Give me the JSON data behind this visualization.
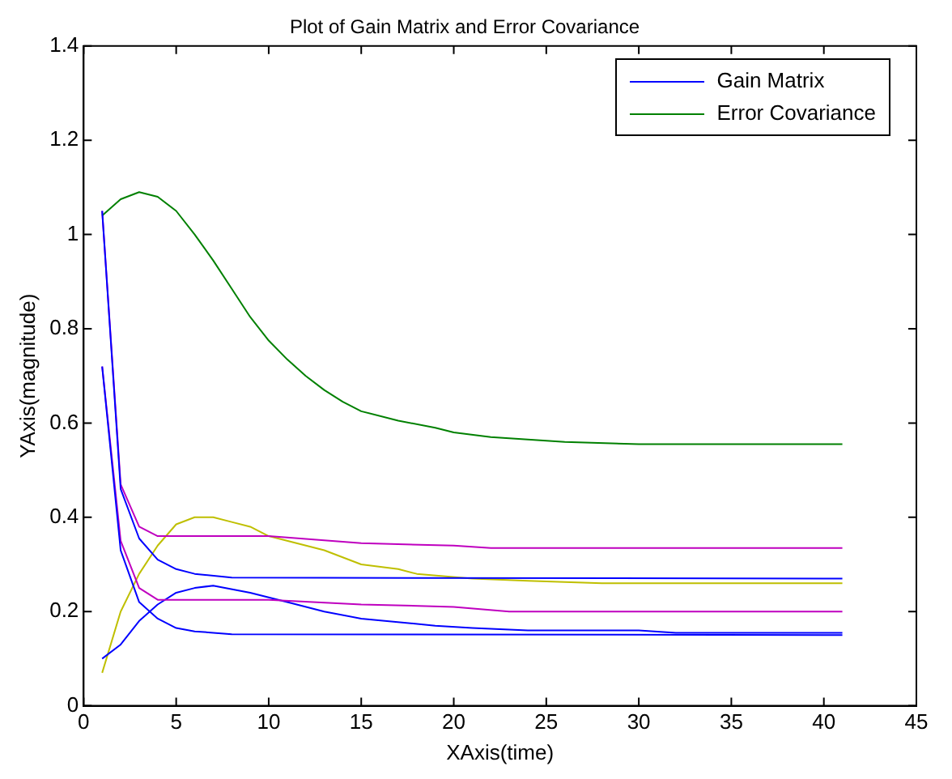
{
  "chart_data": {
    "type": "line",
    "title": "Plot of Gain Matrix and Error Covariance",
    "xlabel": "XAxis(time)",
    "ylabel": "YAxis(magnitude)",
    "xlim": [
      0,
      45
    ],
    "xticks": [
      0,
      5,
      10,
      15,
      20,
      25,
      30,
      35,
      40,
      45
    ],
    "ylim": [
      0,
      1.4
    ],
    "yticks": [
      0,
      0.2,
      0.4,
      0.6,
      0.8,
      1,
      1.2,
      1.4
    ],
    "grid": false,
    "legend": "top right",
    "line_style": "solid",
    "marker": "none",
    "series": [
      {
        "name": "Gain Matrix",
        "color": "#0000ff",
        "x": [
          1,
          2,
          3,
          4,
          5,
          6,
          8,
          41
        ],
        "values": [
          1.05,
          0.46,
          0.355,
          0.31,
          0.29,
          0.28,
          0.272,
          0.27
        ]
      },
      {
        "name": "Error Covariance",
        "color": "#008000",
        "x": [
          1,
          2,
          3,
          4,
          5,
          6,
          7,
          8,
          9,
          10,
          11,
          12,
          13,
          14,
          15,
          17,
          19,
          20,
          22,
          24,
          26,
          30,
          41
        ],
        "values": [
          1.04,
          1.075,
          1.09,
          1.08,
          1.05,
          1.0,
          0.945,
          0.885,
          0.825,
          0.775,
          0.735,
          0.7,
          0.67,
          0.645,
          0.625,
          0.605,
          0.59,
          0.58,
          0.57,
          0.565,
          0.56,
          0.555,
          0.555
        ]
      },
      {
        "color": "#bf00bf",
        "x": [
          1,
          2,
          3,
          4,
          5,
          10,
          15,
          20,
          22,
          41
        ],
        "values": [
          1.05,
          0.47,
          0.38,
          0.36,
          0.36,
          0.36,
          0.345,
          0.34,
          0.335,
          0.335
        ]
      },
      {
        "color": "#0000ff",
        "x": [
          1,
          2,
          3,
          4,
          5,
          6,
          8,
          41
        ],
        "values": [
          0.72,
          0.33,
          0.22,
          0.185,
          0.165,
          0.158,
          0.152,
          0.15
        ]
      },
      {
        "color": "#bf00bf",
        "x": [
          1,
          2,
          3,
          4,
          5,
          10,
          15,
          20,
          23,
          41
        ],
        "values": [
          0.72,
          0.35,
          0.25,
          0.225,
          0.225,
          0.225,
          0.215,
          0.21,
          0.2,
          0.2
        ]
      },
      {
        "color": "#0000ff",
        "x": [
          1,
          2,
          3,
          4,
          5,
          6,
          7,
          9,
          11,
          13,
          15,
          19,
          21,
          24,
          30,
          32,
          41
        ],
        "values": [
          0.1,
          0.13,
          0.18,
          0.215,
          0.24,
          0.25,
          0.255,
          0.24,
          0.22,
          0.2,
          0.185,
          0.17,
          0.165,
          0.16,
          0.16,
          0.155,
          0.155
        ]
      },
      {
        "color": "#bfbf00",
        "x": [
          1,
          2,
          3,
          4,
          5,
          6,
          7,
          8,
          9,
          10,
          13,
          15,
          17,
          18,
          21,
          24,
          28,
          41
        ],
        "values": [
          0.07,
          0.2,
          0.28,
          0.34,
          0.385,
          0.4,
          0.4,
          0.39,
          0.38,
          0.36,
          0.33,
          0.3,
          0.29,
          0.28,
          0.27,
          0.265,
          0.26,
          0.26
        ]
      }
    ]
  }
}
